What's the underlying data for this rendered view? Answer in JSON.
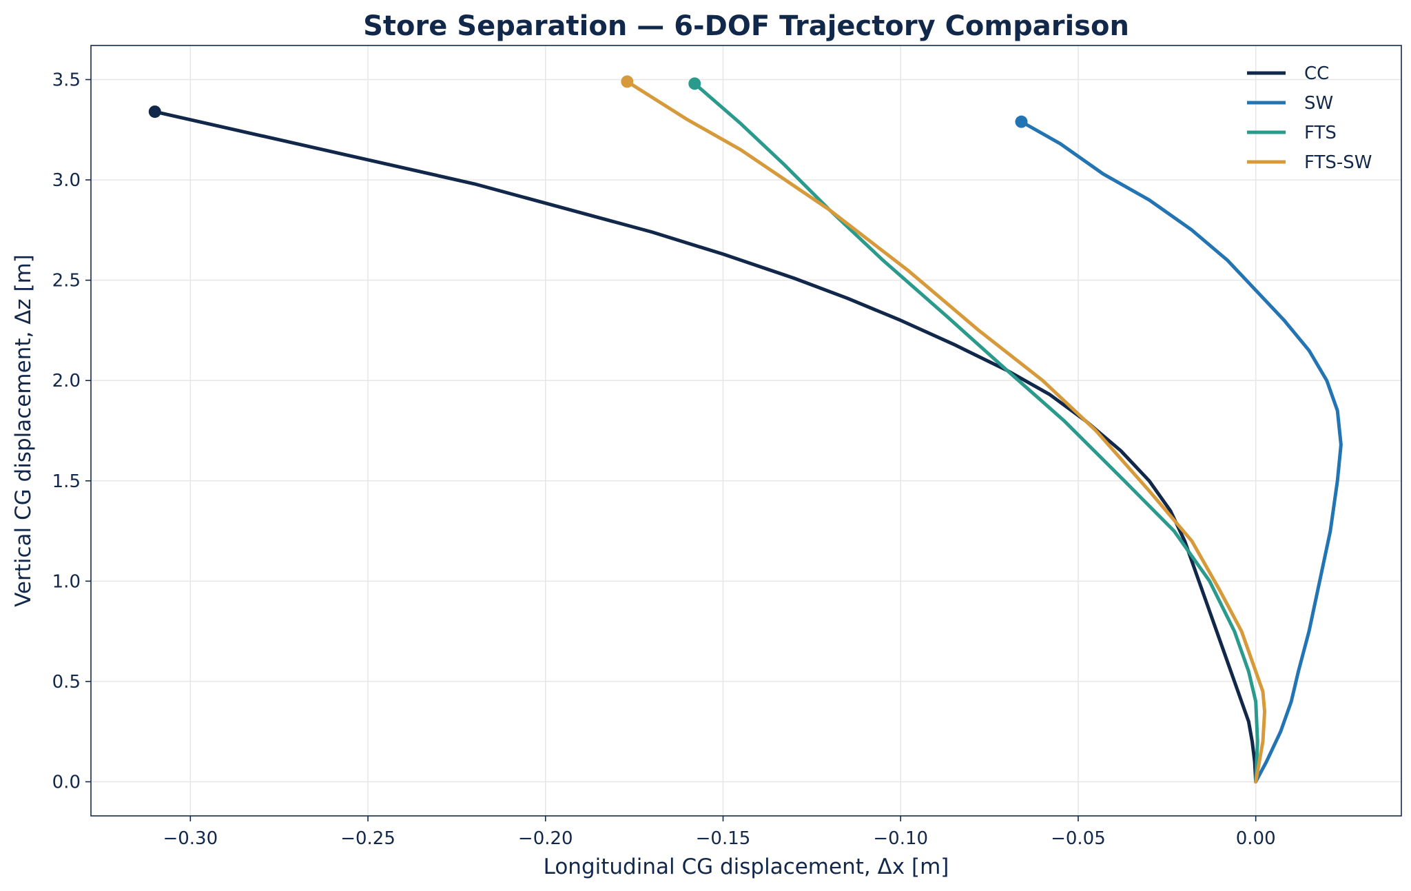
{
  "chart_data": {
    "type": "line",
    "title": "Store Separation — 6-DOF Trajectory Comparison",
    "xlabel": "Longitudinal CG displacement, Δx [m]",
    "ylabel": "Vertical CG displacement, Δz [m]",
    "xlim": [
      -0.328,
      0.041
    ],
    "ylim": [
      -0.17,
      3.67
    ],
    "xticks": [
      -0.3,
      -0.25,
      -0.2,
      -0.15,
      -0.1,
      -0.05,
      0.0
    ],
    "xtick_labels": [
      "−0.30",
      "−0.25",
      "−0.20",
      "−0.15",
      "−0.10",
      "−0.05",
      "0.00"
    ],
    "yticks": [
      0.0,
      0.5,
      1.0,
      1.5,
      2.0,
      2.5,
      3.0,
      3.5
    ],
    "ytick_labels": [
      "0.0",
      "0.5",
      "1.0",
      "1.5",
      "2.0",
      "2.5",
      "3.0",
      "3.5"
    ],
    "grid": true,
    "legend_position": "top-right",
    "series": [
      {
        "name": "CC",
        "color": "#11284b",
        "end_marker": true,
        "points": [
          [
            0.0,
            0.0
          ],
          [
            -0.0003,
            0.1
          ],
          [
            -0.001,
            0.2
          ],
          [
            -0.002,
            0.3
          ],
          [
            -0.004,
            0.4
          ],
          [
            -0.006,
            0.5
          ],
          [
            -0.009,
            0.65
          ],
          [
            -0.013,
            0.85
          ],
          [
            -0.017,
            1.05
          ],
          [
            -0.02,
            1.2
          ],
          [
            -0.024,
            1.35
          ],
          [
            -0.03,
            1.5
          ],
          [
            -0.038,
            1.65
          ],
          [
            -0.048,
            1.8
          ],
          [
            -0.058,
            1.93
          ],
          [
            -0.07,
            2.05
          ],
          [
            -0.085,
            2.18
          ],
          [
            -0.1,
            2.3
          ],
          [
            -0.115,
            2.41
          ],
          [
            -0.13,
            2.51
          ],
          [
            -0.15,
            2.63
          ],
          [
            -0.17,
            2.74
          ],
          [
            -0.195,
            2.86
          ],
          [
            -0.22,
            2.98
          ],
          [
            -0.25,
            3.1
          ],
          [
            -0.28,
            3.22
          ],
          [
            -0.31,
            3.34
          ]
        ]
      },
      {
        "name": "SW",
        "color": "#2374b2",
        "end_marker": true,
        "points": [
          [
            0.0,
            0.0
          ],
          [
            0.003,
            0.1
          ],
          [
            0.007,
            0.25
          ],
          [
            0.01,
            0.4
          ],
          [
            0.012,
            0.55
          ],
          [
            0.015,
            0.75
          ],
          [
            0.018,
            1.0
          ],
          [
            0.021,
            1.25
          ],
          [
            0.023,
            1.5
          ],
          [
            0.024,
            1.68
          ],
          [
            0.023,
            1.85
          ],
          [
            0.02,
            2.0
          ],
          [
            0.015,
            2.15
          ],
          [
            0.008,
            2.3
          ],
          [
            0.0,
            2.45
          ],
          [
            -0.008,
            2.6
          ],
          [
            -0.018,
            2.75
          ],
          [
            -0.03,
            2.9
          ],
          [
            -0.043,
            3.03
          ],
          [
            -0.055,
            3.18
          ],
          [
            -0.066,
            3.29
          ]
        ]
      },
      {
        "name": "FTS",
        "color": "#2a9a8d",
        "end_marker": true,
        "points": [
          [
            0.0,
            0.0
          ],
          [
            0.0005,
            0.2
          ],
          [
            0.0,
            0.4
          ],
          [
            -0.002,
            0.55
          ],
          [
            -0.006,
            0.75
          ],
          [
            -0.013,
            1.0
          ],
          [
            -0.023,
            1.25
          ],
          [
            -0.037,
            1.5
          ],
          [
            -0.054,
            1.8
          ],
          [
            -0.07,
            2.05
          ],
          [
            -0.087,
            2.32
          ],
          [
            -0.105,
            2.6
          ],
          [
            -0.12,
            2.85
          ],
          [
            -0.133,
            3.08
          ],
          [
            -0.145,
            3.28
          ],
          [
            -0.158,
            3.48
          ]
        ]
      },
      {
        "name": "FTS-SW",
        "color": "#d79a3b",
        "end_marker": true,
        "points": [
          [
            0.0,
            0.0
          ],
          [
            0.002,
            0.2
          ],
          [
            0.0025,
            0.35
          ],
          [
            0.002,
            0.45
          ],
          [
            0.0,
            0.55
          ],
          [
            -0.004,
            0.75
          ],
          [
            -0.01,
            0.95
          ],
          [
            -0.018,
            1.2
          ],
          [
            -0.03,
            1.45
          ],
          [
            -0.045,
            1.75
          ],
          [
            -0.06,
            2.0
          ],
          [
            -0.078,
            2.25
          ],
          [
            -0.098,
            2.55
          ],
          [
            -0.12,
            2.85
          ],
          [
            -0.145,
            3.15
          ],
          [
            -0.16,
            3.3
          ],
          [
            -0.177,
            3.49
          ]
        ]
      }
    ]
  }
}
